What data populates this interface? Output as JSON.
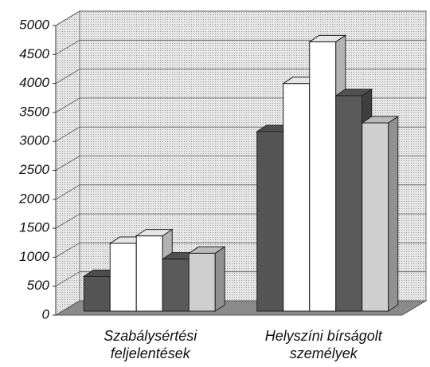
{
  "chart_data": {
    "type": "bar3d",
    "categories": [
      "Szabálysértési feljelentések",
      "Helyszíni bírságolt személyek"
    ],
    "series": [
      {
        "color": "#555555",
        "values": [
          600,
          3100
        ]
      },
      {
        "color": "#ffffff",
        "values": [
          1170,
          3930
        ]
      },
      {
        "color": "#ffffff",
        "values": [
          1300,
          4650
        ]
      },
      {
        "color": "#5a5a5a",
        "values": [
          900,
          3720
        ]
      },
      {
        "color": "#cfcfcf",
        "values": [
          1000,
          3250
        ]
      }
    ],
    "ylim": [
      0,
      5000
    ],
    "yticks": [
      0,
      500,
      1000,
      1500,
      2000,
      2500,
      3000,
      3500,
      4000,
      4500,
      5000
    ],
    "grid": true
  }
}
